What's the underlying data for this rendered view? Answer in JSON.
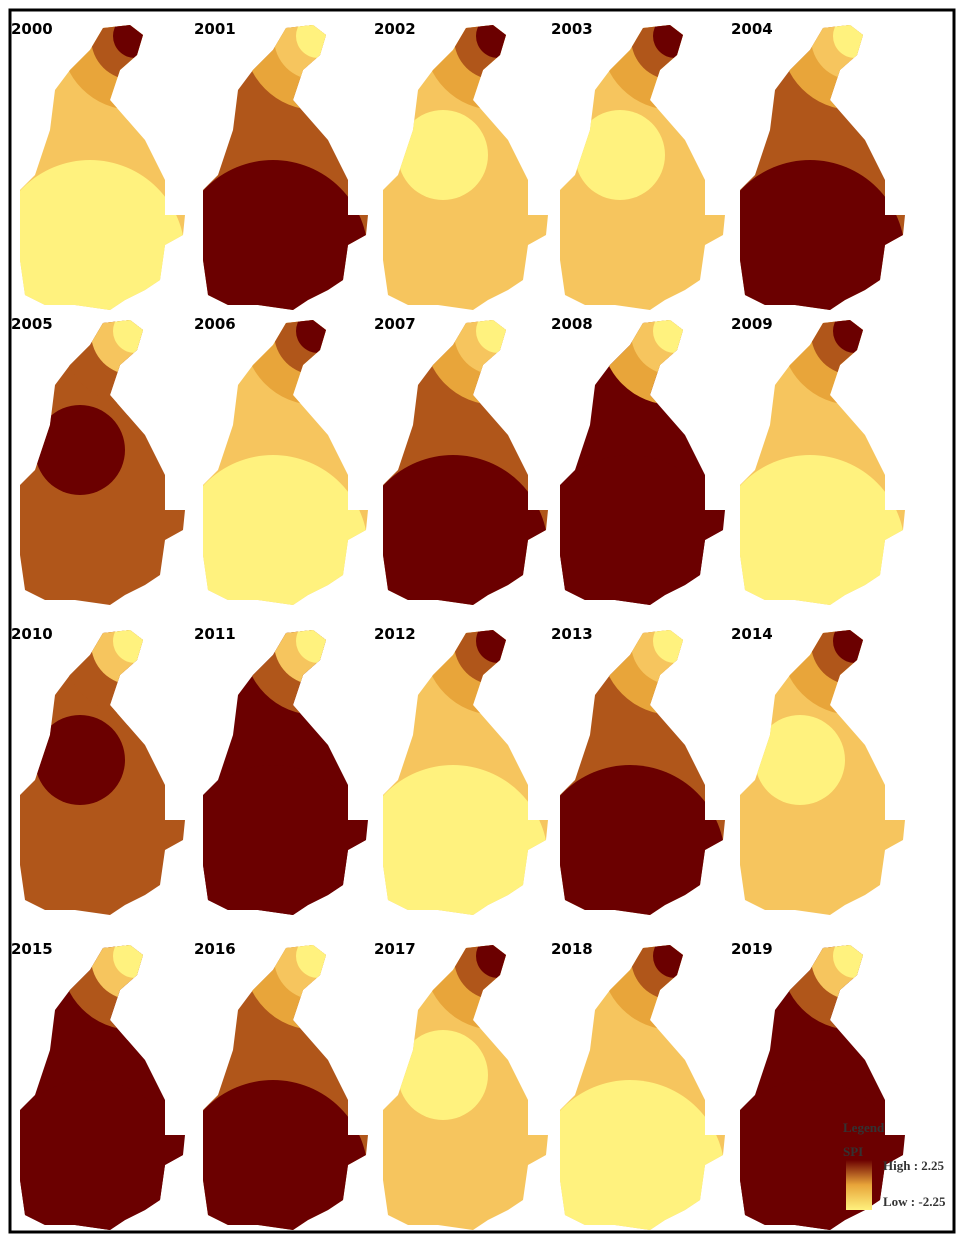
{
  "maps": [
    {
      "year": "2000",
      "circle": "bottom",
      "zones": [
        "#6b0000",
        "#b0561a",
        "#e8a53a",
        "#f6c55e",
        "#fff27e"
      ]
    },
    {
      "year": "2001",
      "circle": "bottom",
      "zones": [
        "#fff27e",
        "#f6c55e",
        "#e8a53a",
        "#b0561a",
        "#6b0000"
      ]
    },
    {
      "year": "2002",
      "circle": "middle",
      "zones": [
        "#6b0000",
        "#b0561a",
        "#e8a53a",
        "#f6c55e",
        "#fff27e"
      ]
    },
    {
      "year": "2003",
      "circle": "middle",
      "zones": [
        "#6b0000",
        "#b0561a",
        "#e8a53a",
        "#f6c55e",
        "#fff27e"
      ]
    },
    {
      "year": "2004",
      "circle": "bottom",
      "zones": [
        "#fff27e",
        "#f6c55e",
        "#e8a53a",
        "#b0561a",
        "#6b0000"
      ]
    },
    {
      "year": "2005",
      "circle": "middle",
      "zones": [
        "#fff27e",
        "#f6c55e",
        "#b0561a",
        "#b0561a",
        "#6b0000"
      ]
    },
    {
      "year": "2006",
      "circle": "bottom",
      "zones": [
        "#6b0000",
        "#b0561a",
        "#e8a53a",
        "#f6c55e",
        "#fff27e"
      ]
    },
    {
      "year": "2007",
      "circle": "bottom",
      "zones": [
        "#fff27e",
        "#f6c55e",
        "#e8a53a",
        "#b0561a",
        "#6b0000"
      ]
    },
    {
      "year": "2008",
      "circle": "bottom",
      "zones": [
        "#fff27e",
        "#f6c55e",
        "#e8a53a",
        "#6b0000",
        "#6b0000"
      ]
    },
    {
      "year": "2009",
      "circle": "bottom",
      "zones": [
        "#6b0000",
        "#b0561a",
        "#e8a53a",
        "#f6c55e",
        "#fff27e"
      ]
    },
    {
      "year": "2010",
      "circle": "middle",
      "zones": [
        "#fff27e",
        "#f6c55e",
        "#b0561a",
        "#b0561a",
        "#6b0000"
      ]
    },
    {
      "year": "2011",
      "circle": "bottom",
      "zones": [
        "#fff27e",
        "#f6c55e",
        "#b0561a",
        "#6b0000",
        "#6b0000"
      ]
    },
    {
      "year": "2012",
      "circle": "bottom",
      "zones": [
        "#6b0000",
        "#b0561a",
        "#e8a53a",
        "#f6c55e",
        "#fff27e"
      ]
    },
    {
      "year": "2013",
      "circle": "bottom",
      "zones": [
        "#fff27e",
        "#f6c55e",
        "#e8a53a",
        "#b0561a",
        "#6b0000"
      ]
    },
    {
      "year": "2014",
      "circle": "middle",
      "zones": [
        "#6b0000",
        "#b0561a",
        "#e8a53a",
        "#f6c55e",
        "#fff27e"
      ]
    },
    {
      "year": "2015",
      "circle": "bottom",
      "zones": [
        "#fff27e",
        "#f6c55e",
        "#b0561a",
        "#6b0000",
        "#6b0000"
      ]
    },
    {
      "year": "2016",
      "circle": "bottom",
      "zones": [
        "#fff27e",
        "#f6c55e",
        "#e8a53a",
        "#b0561a",
        "#6b0000"
      ]
    },
    {
      "year": "2017",
      "circle": "middle",
      "zones": [
        "#6b0000",
        "#b0561a",
        "#e8a53a",
        "#f6c55e",
        "#fff27e"
      ]
    },
    {
      "year": "2018",
      "circle": "bottom",
      "zones": [
        "#6b0000",
        "#b0561a",
        "#e8a53a",
        "#f6c55e",
        "#fff27e"
      ]
    },
    {
      "year": "2019",
      "circle": "bottom",
      "zones": [
        "#fff27e",
        "#f6c55e",
        "#b0561a",
        "#6b0000",
        "#6b0000"
      ]
    }
  ],
  "legend": {
    "title": "Legend",
    "field": "SPI",
    "high": "High : 2.25",
    "low": "Low : -2.25",
    "colors": [
      "#6b0000",
      "#e8a53a",
      "#fff27e"
    ]
  }
}
